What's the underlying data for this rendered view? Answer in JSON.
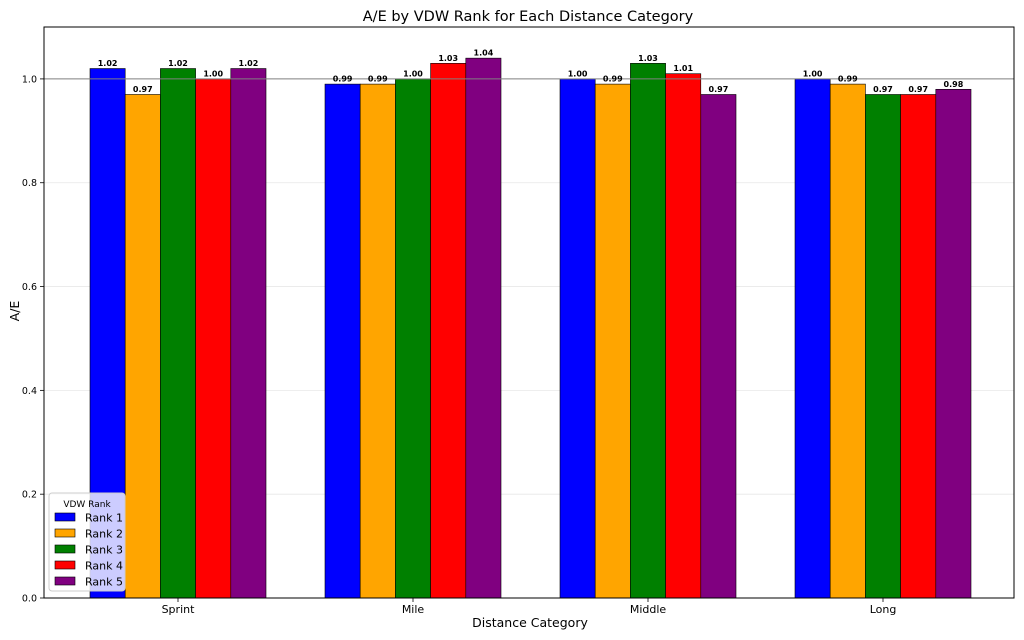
{
  "chart_data": {
    "type": "bar",
    "title": "A/E by VDW Rank for Each Distance Category",
    "xlabel": "Distance Category",
    "ylabel": "A/E",
    "categories": [
      "Sprint",
      "Mile",
      "Middle",
      "Long"
    ],
    "ylim": [
      0,
      1.1
    ],
    "yticks": [
      "0.0",
      "0.2",
      "0.4",
      "0.6",
      "0.8",
      "1.0"
    ],
    "reference_line": 1.0,
    "grid": true,
    "legend": {
      "title": "VDW Rank",
      "position": "lower-left"
    },
    "series": [
      {
        "name": "Rank 1",
        "color": "#0000ff",
        "values": [
          1.02,
          0.99,
          1.0,
          1.0
        ],
        "labels": [
          "1.02",
          "0.99",
          "1.00",
          "1.00"
        ]
      },
      {
        "name": "Rank 2",
        "color": "#ffa500",
        "values": [
          0.97,
          0.99,
          0.99,
          0.99
        ],
        "labels": [
          "0.97",
          "0.99",
          "0.99",
          "0.99"
        ]
      },
      {
        "name": "Rank 3",
        "color": "#008000",
        "values": [
          1.02,
          1.0,
          1.03,
          0.97
        ],
        "labels": [
          "1.02",
          "1.00",
          "1.03",
          "0.97"
        ]
      },
      {
        "name": "Rank 4",
        "color": "#ff0000",
        "values": [
          1.0,
          1.03,
          1.01,
          0.97
        ],
        "labels": [
          "1.00",
          "1.03",
          "1.01",
          "0.97"
        ]
      },
      {
        "name": "Rank 5",
        "color": "#800080",
        "values": [
          1.02,
          1.04,
          0.97,
          0.98
        ],
        "labels": [
          "1.02",
          "1.04",
          "0.97",
          "0.98"
        ]
      }
    ]
  }
}
